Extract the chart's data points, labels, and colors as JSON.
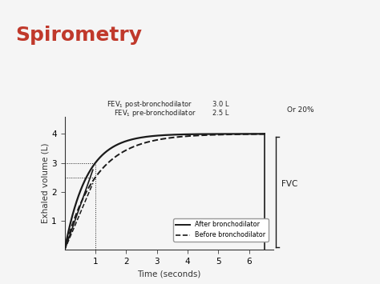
{
  "title": "Spirometry",
  "title_color": "#c0392b",
  "title_fontsize": 18,
  "title_fontweight": "bold",
  "xlabel": "Time (seconds)",
  "ylabel": "Exhaled volume (L)",
  "xlim": [
    0,
    6.8
  ],
  "ylim": [
    0,
    4.6
  ],
  "xticks": [
    1,
    2,
    3,
    4,
    5,
    6
  ],
  "yticks": [
    1,
    2,
    3,
    4
  ],
  "fev1_post": 3.0,
  "fev1_pre": 2.5,
  "fvc_after": 4.0,
  "fvc_before": 4.0,
  "fev1_time": 1.0,
  "legend_after": "After bronchodilator",
  "legend_before": "Before bronchodilator",
  "annotation_or20": "Or 20%",
  "annotation_fvc": "FVC",
  "bg_color": "#f5f5f5",
  "curve_color": "#1a1a1a",
  "header_bar_left_color": "#c0392b",
  "header_bar_right_color": "#2c4a8c"
}
